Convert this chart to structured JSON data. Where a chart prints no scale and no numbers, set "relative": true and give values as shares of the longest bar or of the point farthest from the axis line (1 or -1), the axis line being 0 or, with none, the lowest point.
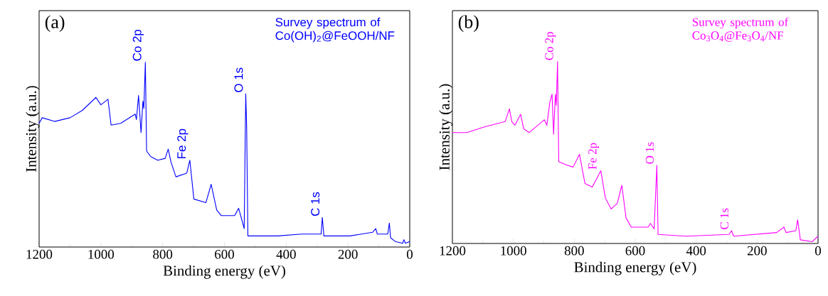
{
  "chart_data": [
    {
      "type": "line",
      "title": "(a)",
      "subtitle": "Survey spectrum of Co(OH)$_{2}$@FeOOH/NF",
      "xlabel": "Binding energy (eV)",
      "ylabel": "Intensity (a.u.)",
      "relative": true,
      "xlim": [
        1200,
        0
      ],
      "xticks": [
        1200,
        1000,
        800,
        600,
        400,
        200,
        0
      ],
      "series": [
        {
          "color": "#0000ff",
          "x": [
            1200,
            1190,
            1150,
            1100,
            1060,
            1016,
            1000,
            977,
            967,
            936,
            889,
            885,
            878,
            870,
            864,
            861,
            856,
            852,
            839,
            816,
            792,
            782,
            773,
            757,
            722,
            712,
            699,
            660,
            643,
            625,
            610,
            567,
            554,
            536,
            531,
            528,
            524,
            427,
            350,
            287,
            283,
            278,
            194,
            120,
            110,
            105,
            71,
            66,
            62,
            47,
            23,
            19,
            14,
            0
          ],
          "values": [
            0.67,
            0.7,
            0.68,
            0.7,
            0.74,
            0.81,
            0.77,
            0.8,
            0.66,
            0.67,
            0.72,
            0.69,
            0.82,
            0.62,
            0.79,
            0.75,
            1.0,
            0.52,
            0.49,
            0.47,
            0.48,
            0.53,
            0.46,
            0.38,
            0.4,
            0.47,
            0.26,
            0.24,
            0.34,
            0.2,
            0.17,
            0.17,
            0.21,
            0.1,
            0.83,
            0.65,
            0.06,
            0.06,
            0.07,
            0.07,
            0.16,
            0.06,
            0.06,
            0.08,
            0.1,
            0.07,
            0.07,
            0.13,
            0.05,
            0.03,
            0.02,
            0.04,
            0.02,
            0.03
          ]
        }
      ],
      "annotations": [
        {
          "text": "Co 2p",
          "x": 856,
          "y": 1.0
        },
        {
          "text": "Fe 2p",
          "x": 712,
          "y": 0.47
        },
        {
          "text": "O 1s",
          "x": 531,
          "y": 0.83
        },
        {
          "text": "C 1s",
          "x": 283,
          "y": 0.16
        }
      ]
    },
    {
      "type": "line",
      "title": "(b)",
      "subtitle": "Survey spectrum of Co$_{3}$O$_{4}$@Fe$_{3}$O$_{4}$/NF",
      "xlabel": "Binding energy (eV)",
      "ylabel": "Intensity (a.u.)",
      "relative": true,
      "xlim": [
        1200,
        0
      ],
      "xticks": [
        1200,
        1000,
        800,
        600,
        400,
        200,
        0
      ],
      "series": [
        {
          "color": "#ff00ff",
          "x": [
            1200,
            1152,
            1097,
            1027,
            1013,
            1005,
            995,
            976,
            966,
            948,
            898,
            890,
            880,
            873,
            868,
            862,
            859,
            855,
            851,
            823,
            804,
            783,
            765,
            741,
            713,
            698,
            679,
            659,
            644,
            630,
            613,
            558,
            550,
            538,
            529,
            525,
            433,
            292,
            284,
            277,
            136,
            112,
            105,
            73,
            67,
            58,
            19,
            0
          ],
          "values": [
            0.61,
            0.61,
            0.64,
            0.67,
            0.74,
            0.67,
            0.65,
            0.71,
            0.63,
            0.61,
            0.68,
            0.65,
            0.78,
            0.82,
            0.6,
            0.82,
            0.76,
            1.0,
            0.45,
            0.43,
            0.42,
            0.49,
            0.33,
            0.31,
            0.4,
            0.25,
            0.19,
            0.22,
            0.32,
            0.14,
            0.09,
            0.09,
            0.11,
            0.08,
            0.43,
            0.05,
            0.04,
            0.05,
            0.07,
            0.04,
            0.06,
            0.09,
            0.06,
            0.07,
            0.13,
            0.02,
            0.01,
            0.04
          ]
        }
      ],
      "annotations": [
        {
          "text": "Co 2p",
          "x": 855,
          "y": 1.0
        },
        {
          "text": "Fe 2p",
          "x": 713,
          "y": 0.4
        },
        {
          "text": "O 1s",
          "x": 529,
          "y": 0.43
        },
        {
          "text": "C 1s",
          "x": 284,
          "y": 0.07
        }
      ]
    }
  ]
}
